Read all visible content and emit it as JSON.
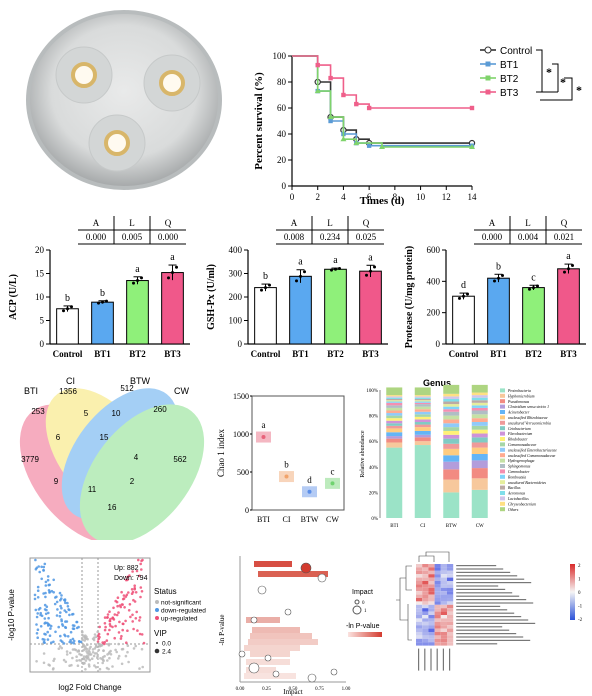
{
  "survival": {
    "chart_data": {
      "type": "line",
      "ylabel": "Percent survival (%)",
      "xlabel": "Times (d)",
      "xlim": [
        0,
        14
      ],
      "ylim": [
        0,
        100
      ],
      "xticks": [
        "0",
        "2",
        "4",
        "6",
        "8",
        "10",
        "12",
        "14"
      ],
      "yticks": [
        "0",
        "20",
        "40",
        "60",
        "80",
        "100"
      ],
      "series": [
        {
          "name": "Control",
          "color": "#333333",
          "points": [
            [
              2,
              80
            ],
            [
              3,
              53
            ],
            [
              4,
              43
            ],
            [
              5,
              36
            ],
            [
              6,
              33
            ],
            [
              14,
              33
            ]
          ]
        },
        {
          "name": "BT1",
          "color": "#5b9bd5",
          "points": [
            [
              2,
              73
            ],
            [
              3,
              50
            ],
            [
              4,
              40
            ],
            [
              5,
              33
            ],
            [
              6,
              31
            ],
            [
              14,
              31
            ]
          ]
        },
        {
          "name": "BT2",
          "color": "#7fd36b",
          "points": [
            [
              2,
              73
            ],
            [
              3,
              53
            ],
            [
              4,
              36
            ],
            [
              5,
              33
            ],
            [
              7,
              30
            ],
            [
              14,
              30
            ]
          ]
        },
        {
          "name": "BT3",
          "color": "#ef5f8a",
          "points": [
            [
              2,
              93
            ],
            [
              3,
              83
            ],
            [
              4,
              70
            ],
            [
              5,
              63
            ],
            [
              6,
              60
            ],
            [
              14,
              60
            ]
          ]
        }
      ],
      "sig": [
        "*",
        "*",
        "*"
      ]
    }
  },
  "bars": [
    {
      "ylabel": "ACP (U/L)",
      "ylim": [
        0,
        20
      ],
      "yticks": [
        "0",
        "5",
        "10",
        "15",
        "20"
      ],
      "stats": {
        "headers": [
          "A",
          "L",
          "Q"
        ],
        "values": [
          "0.000",
          "0.005",
          "0.000"
        ]
      },
      "chart_data": {
        "type": "bar",
        "categories": [
          "Control",
          "BT1",
          "BT2",
          "BT3"
        ],
        "values": [
          7.5,
          8.9,
          13.5,
          15.2
        ],
        "errors": [
          0.6,
          0.3,
          0.8,
          1.6
        ],
        "letters": [
          "b",
          "b",
          "a",
          "a"
        ]
      }
    },
    {
      "ylabel": "GSH-Px (U/ml)",
      "ylim": [
        0,
        400
      ],
      "yticks": [
        "0",
        "100",
        "200",
        "300",
        "400"
      ],
      "stats": {
        "headers": [
          "A",
          "L",
          "Q"
        ],
        "values": [
          "0.008",
          "0.234",
          "0.025"
        ]
      },
      "chart_data": {
        "type": "bar",
        "categories": [
          "Control",
          "BT1",
          "BT2",
          "BT3"
        ],
        "values": [
          240,
          288,
          318,
          310
        ],
        "errors": [
          15,
          28,
          5,
          25
        ],
        "letters": [
          "b",
          "a",
          "a",
          "a"
        ]
      }
    },
    {
      "ylabel": "Protease (U/mg protein)",
      "ylim": [
        0,
        600
      ],
      "yticks": [
        "0",
        "200",
        "400",
        "600"
      ],
      "stats": {
        "headers": [
          "A",
          "L",
          "Q"
        ],
        "values": [
          "0.000",
          "0.004",
          "0.021"
        ]
      },
      "chart_data": {
        "type": "bar",
        "categories": [
          "Control",
          "BT1",
          "BT2",
          "BT3"
        ],
        "values": [
          305,
          420,
          360,
          480
        ],
        "errors": [
          20,
          25,
          15,
          30
        ],
        "letters": [
          "d",
          "b",
          "c",
          "a"
        ]
      }
    }
  ],
  "bar_colors": [
    "#ffffff",
    "#5aa8f0",
    "#8ff07a",
    "#f0588a"
  ],
  "venn": {
    "labels": [
      "BTI",
      "CI",
      "BTW",
      "CW"
    ],
    "numbers": [
      "1356",
      "512",
      "253",
      "260",
      "3779",
      "562",
      "5",
      "10",
      "6",
      "15",
      "4",
      "9",
      "11",
      "2",
      "16"
    ]
  },
  "chao": {
    "ylabel": "Chao 1 index",
    "ylim": [
      0,
      1500
    ],
    "yticks": [
      "0",
      "500",
      "1000",
      "1500"
    ],
    "chart_data": {
      "type": "scatter",
      "categories": [
        "BTI",
        "CI",
        "BTW",
        "CW"
      ],
      "values": [
        960,
        440,
        240,
        350
      ],
      "letters": [
        "a",
        "b",
        "d",
        "c"
      ],
      "colors": [
        "#e8627a",
        "#f1a36b",
        "#5b8ee8",
        "#6fd36f"
      ]
    }
  },
  "genus": {
    "title": "Genus",
    "ylabel": "Relative abundance",
    "yticks": [
      "0%",
      "20%",
      "40%",
      "60%",
      "80%",
      "100%"
    ],
    "categories": [
      "BTI",
      "CI",
      "BTW",
      "CW"
    ],
    "legend": [
      "Proteobacteria",
      "Hyphomicrobium",
      "Pseudomonas",
      "Clostridium sensu stricto 1",
      "Acinetobacter",
      "unclassified Rhizobiaceae",
      "uncultured Verrucomicrobia",
      "Cetobacterium",
      "Flavobacterium",
      "Rhodobacter",
      "Comamonadaceae",
      "unclassified Enterobacteriaceae",
      "unclassified Comamonadaceae",
      "Hydrogenophaga",
      "Sphingomonas",
      "Gemmobacter",
      "Romboutsia",
      "uncultured Bacteroidetes",
      "Bacillus",
      "Aeromonas",
      "Lactobacillus",
      "Chryseobacterium",
      "Others"
    ]
  },
  "volcano": {
    "ylabel": "-log10 P-value",
    "xlabel": "log2 Fold Change",
    "up": "Up: 882",
    "down": "Down: 794",
    "legend_title": "Status",
    "legend_items": [
      "not-significant",
      "down-regulated",
      "up-regulated"
    ],
    "vip_title": "VIP",
    "vip_items": [
      "0.0",
      "2.4"
    ]
  },
  "pathway": {
    "ylabel": "-ln P-value",
    "xlabel": "Impact",
    "xticks": [
      "0.00",
      "0.25",
      "0.50",
      "0.75",
      "1.00"
    ],
    "legend_impact": "Impact",
    "legend_impact_items": [
      "0",
      "1"
    ],
    "legend_p": "-ln P-value"
  },
  "heatmap": {
    "scale": [
      "2",
      "1",
      "0",
      "-1",
      "-2"
    ]
  }
}
